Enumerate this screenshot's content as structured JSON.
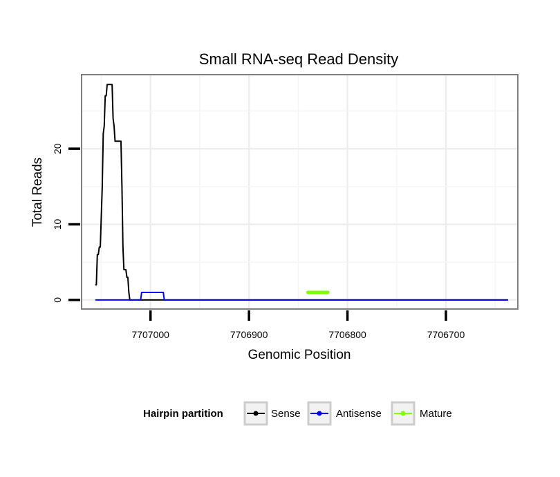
{
  "chart_data": {
    "type": "line",
    "title": "Small RNA-seq Read Density",
    "xlabel": "Genomic Position",
    "ylabel": "Total Reads",
    "x_reversed": true,
    "xlim": [
      7707070,
      7706627
    ],
    "ylim": [
      -1.2,
      29.8
    ],
    "x_ticks": [
      7707000,
      7706900,
      7706800,
      7706700
    ],
    "x_tick_labels": [
      "7707000",
      "7706900",
      "7706800",
      "7706700"
    ],
    "y_ticks": [
      0,
      10,
      20
    ],
    "y_tick_labels": [
      "0",
      "10",
      "20"
    ],
    "grid": true,
    "legend": {
      "title": "Hairpin partition",
      "position": "bottom",
      "entries": [
        {
          "label": "Sense",
          "color": "#000000"
        },
        {
          "label": "Antisense",
          "color": "#0000ff"
        },
        {
          "label": "Mature",
          "color": "#7fff00"
        }
      ]
    },
    "series": [
      {
        "name": "Sense",
        "color": "#000000",
        "x": [
          7707056,
          7707055,
          7707054,
          7707053,
          7707052,
          7707051,
          7707050,
          7707049,
          7707048,
          7707047,
          7707046,
          7707045,
          7707044,
          7707043,
          7707042,
          7707041,
          7707040,
          7707039,
          7707038,
          7707037,
          7707036,
          7707035,
          7707034,
          7707033,
          7707032,
          7707031,
          7707030,
          7707029,
          7707028,
          7707027,
          7707026,
          7707025,
          7707024,
          7707023,
          7707022,
          7707021,
          7707020,
          7707019,
          7707018,
          7707017,
          7707016,
          7707015,
          7707014,
          7706637
        ],
        "y": [
          2,
          2,
          6,
          6,
          7,
          7,
          11,
          15,
          22,
          23,
          27,
          27,
          28.5,
          28.5,
          28.5,
          28.5,
          28.5,
          28.5,
          24,
          23,
          21,
          21,
          21,
          21,
          21,
          21,
          21,
          15,
          7,
          4,
          4,
          4,
          3,
          3,
          1,
          0,
          0,
          0,
          0,
          0,
          0,
          0,
          0,
          0
        ]
      },
      {
        "name": "Antisense",
        "color": "#0000ff",
        "x": [
          7707056,
          7707010,
          7707009,
          7707008,
          7706988,
          7706987,
          7706986,
          7706637
        ],
        "y": [
          0,
          0,
          1,
          1,
          1,
          1,
          0,
          0
        ]
      },
      {
        "name": "Mature",
        "color": "#7fff00",
        "x": [
          7706840,
          7706839,
          7706838,
          7706822,
          7706821,
          7706820
        ],
        "y": [
          1,
          1,
          1,
          1,
          1,
          1
        ]
      }
    ]
  }
}
